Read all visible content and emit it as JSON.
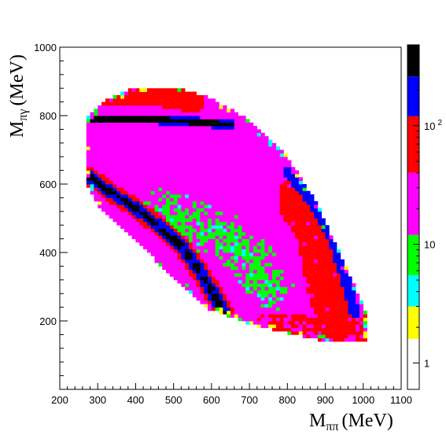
{
  "chart_data": {
    "type": "heatmap",
    "title": "",
    "xlabel": "M",
    "xlabel_sub": "ππ",
    "xlabel_unit": "(MeV)",
    "ylabel": "M",
    "ylabel_sub": "πγ",
    "ylabel_unit": "(MeV)",
    "xlim": [
      200,
      1100
    ],
    "ylim": [
      0,
      1000
    ],
    "x_ticks": [
      200,
      300,
      400,
      500,
      600,
      700,
      800,
      900,
      1000,
      1100
    ],
    "y_ticks": [
      200,
      400,
      600,
      800,
      1000
    ],
    "colorbar": {
      "scale": "log",
      "range": [
        0.6,
        480
      ],
      "tick_labels": [
        "1",
        "10",
        "10 2"
      ],
      "levels": [
        {
          "upper": 1.6,
          "color": "#ffffff"
        },
        {
          "upper": 3.0,
          "color": "#ffff00"
        },
        {
          "upper": 5.5,
          "color": "#00ffff"
        },
        {
          "upper": 12,
          "color": "#00ff00"
        },
        {
          "upper": 40,
          "color": "#ff00ff"
        },
        {
          "upper": 120,
          "color": "#ff0000"
        },
        {
          "upper": 260,
          "color": "#0000ff"
        },
        {
          "upper": 480,
          "color": "#000000"
        }
      ]
    },
    "bins": {
      "x_start": 270,
      "x_end": 1020,
      "x_width": 10,
      "y_start": 130,
      "y_end": 890,
      "y_width": 10
    },
    "region": {
      "description_points": [
        [
          270,
          790
        ],
        [
          270,
          600
        ],
        [
          300,
          540
        ],
        [
          450,
          380
        ],
        [
          580,
          240
        ],
        [
          720,
          185
        ],
        [
          880,
          145
        ],
        [
          1015,
          135
        ],
        [
          1015,
          210
        ],
        [
          880,
          540
        ],
        [
          800,
          680
        ],
        [
          700,
          790
        ],
        [
          600,
          850
        ],
        [
          500,
          885
        ],
        [
          400,
          885
        ],
        [
          330,
          850
        ]
      ]
    },
    "features": [
      {
        "name": "",
        "kind": "horizontal-band",
        "points": [
          [
            280,
            790
          ],
          [
            450,
            790
          ],
          [
            650,
            775
          ]
        ],
        "value": 350
      },
      {
        "name": "",
        "kind": "curved-band",
        "points": [
          [
            280,
            620
          ],
          [
            330,
            580
          ],
          [
            400,
            530
          ],
          [
            470,
            470
          ],
          [
            520,
            420
          ],
          [
            560,
            360
          ],
          [
            600,
            290
          ],
          [
            630,
            230
          ]
        ],
        "value": 300
      },
      {
        "name": "",
        "kind": "edge-band",
        "points": [
          [
            800,
            640
          ],
          [
            870,
            540
          ],
          [
            920,
            440
          ],
          [
            950,
            340
          ],
          [
            980,
            220
          ]
        ],
        "value": 160
      },
      {
        "name": "",
        "kind": "red-top-cap",
        "points": [
          [
            330,
            860
          ],
          [
            450,
            860
          ],
          [
            550,
            840
          ]
        ],
        "value": 60
      },
      {
        "name": "",
        "kind": "red-right-lobe",
        "points": [
          [
            820,
            560
          ],
          [
            880,
            460
          ],
          [
            900,
            330
          ],
          [
            930,
            200
          ]
        ],
        "value": 55
      },
      {
        "name": "",
        "kind": "green-central",
        "points": [
          [
            480,
            520
          ],
          [
            550,
            480
          ],
          [
            620,
            460
          ],
          [
            700,
            380
          ],
          [
            750,
            300
          ]
        ],
        "value": 8
      }
    ]
  }
}
